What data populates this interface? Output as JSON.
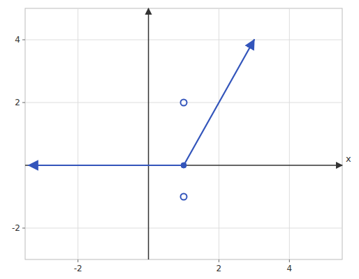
{
  "chart_data": {
    "type": "line",
    "xlabel": "x",
    "xlim": [
      -3.5,
      5.5
    ],
    "ylim": [
      -3.0,
      5.0
    ],
    "xticks": [
      -2,
      2,
      4
    ],
    "yticks": [
      -2,
      2,
      4
    ],
    "grid": true,
    "series": [
      {
        "type": "line",
        "color": "#3355bb",
        "marker": "arrow",
        "x": [
          1,
          -3.4
        ],
        "values": [
          0,
          0
        ]
      },
      {
        "type": "scatter",
        "color": "#3355bb",
        "marker": "filled",
        "x": [
          1
        ],
        "values": [
          0
        ]
      },
      {
        "type": "line",
        "color": "#3355bb",
        "marker": "arrow",
        "x": [
          1,
          3
        ],
        "values": [
          0,
          4
        ]
      },
      {
        "type": "scatter",
        "color": "#3355bb",
        "marker": "open",
        "x": [
          1,
          1
        ],
        "values": [
          -1,
          2
        ]
      }
    ]
  }
}
